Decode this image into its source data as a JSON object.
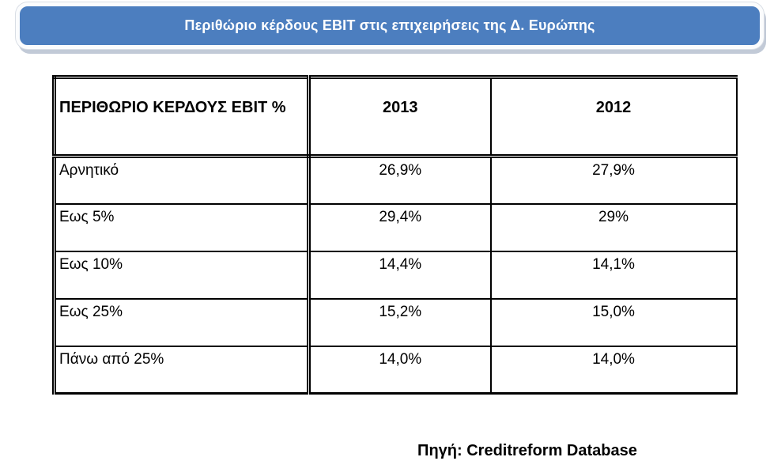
{
  "banner": {
    "title": "Περιθώριο κέρδους EBIT στις επιχειρήσεις της Δ. Ευρώπης",
    "bg_color": "#4c7ebf",
    "text_color": "#ffffff",
    "shadow_color": "#c2cad7"
  },
  "table": {
    "columns": [
      "ΠΕΡΙΘΩΡΙΟ ΚΕΡΔΟΥΣ EBIT %",
      "2013",
      "2012"
    ],
    "rows": [
      {
        "label": "Αρνητικό",
        "v2013": "26,9%",
        "v2012": "27,9%"
      },
      {
        "label": "Εως 5%",
        "v2013": "29,4%",
        "v2012": "29%"
      },
      {
        "label": "Εως 10%",
        "v2013": "14,4%",
        "v2012": "14,1%"
      },
      {
        "label": "Εως 25%",
        "v2013": "15,2%",
        "v2012": "15,0%"
      },
      {
        "label": "Πάνω από 25%",
        "v2013": "14,0%",
        "v2012": "14,0%"
      }
    ],
    "border_color": "#000000"
  },
  "footer": {
    "source": "Πηγή: Creditreform Database"
  }
}
